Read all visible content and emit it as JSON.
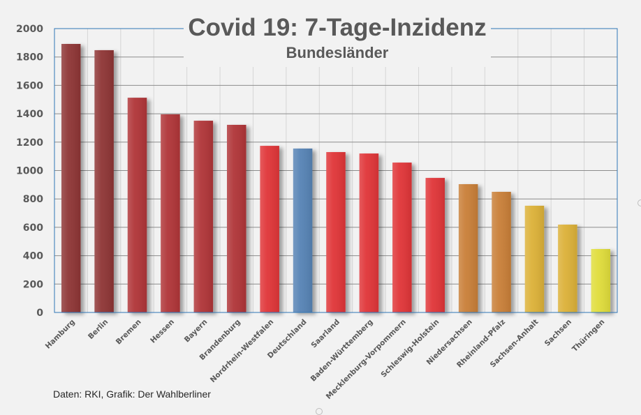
{
  "chart_data": {
    "type": "bar",
    "title": "Covid 19: 7-Tage-Inzidenz",
    "subtitle": "Bundesländer",
    "xlabel": "",
    "ylabel": "",
    "ylim": [
      0,
      2000
    ],
    "yticks": [
      "0",
      "200",
      "400",
      "600",
      "800",
      "1000",
      "1200",
      "1400",
      "1600",
      "1800",
      "2000"
    ],
    "grid": true,
    "legend": "none",
    "categories": [
      "Hamburg",
      "Berlin",
      "Bremen",
      "Hessen",
      "Bayern",
      "Brandenburg",
      "Nordrhein-Westfalen",
      "Deutschland",
      "Saarland",
      "Baden-Württemberg",
      "Mecklenburg-Vorpommern",
      "Schleswig-Holstein",
      "Niedersachsen",
      "Rheinland-Pfalz",
      "Sachsen-Anhalt",
      "Sachsen",
      "Thüringen"
    ],
    "values": [
      1892,
      1848,
      1513,
      1396,
      1351,
      1322,
      1174,
      1155,
      1130,
      1120,
      1056,
      948,
      904,
      850,
      752,
      619,
      447
    ],
    "bar_colors": [
      "#8e3535",
      "#8e3535",
      "#b03437",
      "#b03437",
      "#b03437",
      "#b03437",
      "#e03538",
      "#5683b5",
      "#e03538",
      "#e03538",
      "#e03538",
      "#e03538",
      "#c97f37",
      "#c97f37",
      "#dcb139",
      "#dcb139",
      "#e0dd3a"
    ],
    "source": "Daten: RKI, Grafik: Der Wahlberliner"
  },
  "colors": {
    "background": "#f2f2f2",
    "plot_border": "#2e75b6",
    "gridline": "#8c8c8c",
    "text": "#595959"
  }
}
